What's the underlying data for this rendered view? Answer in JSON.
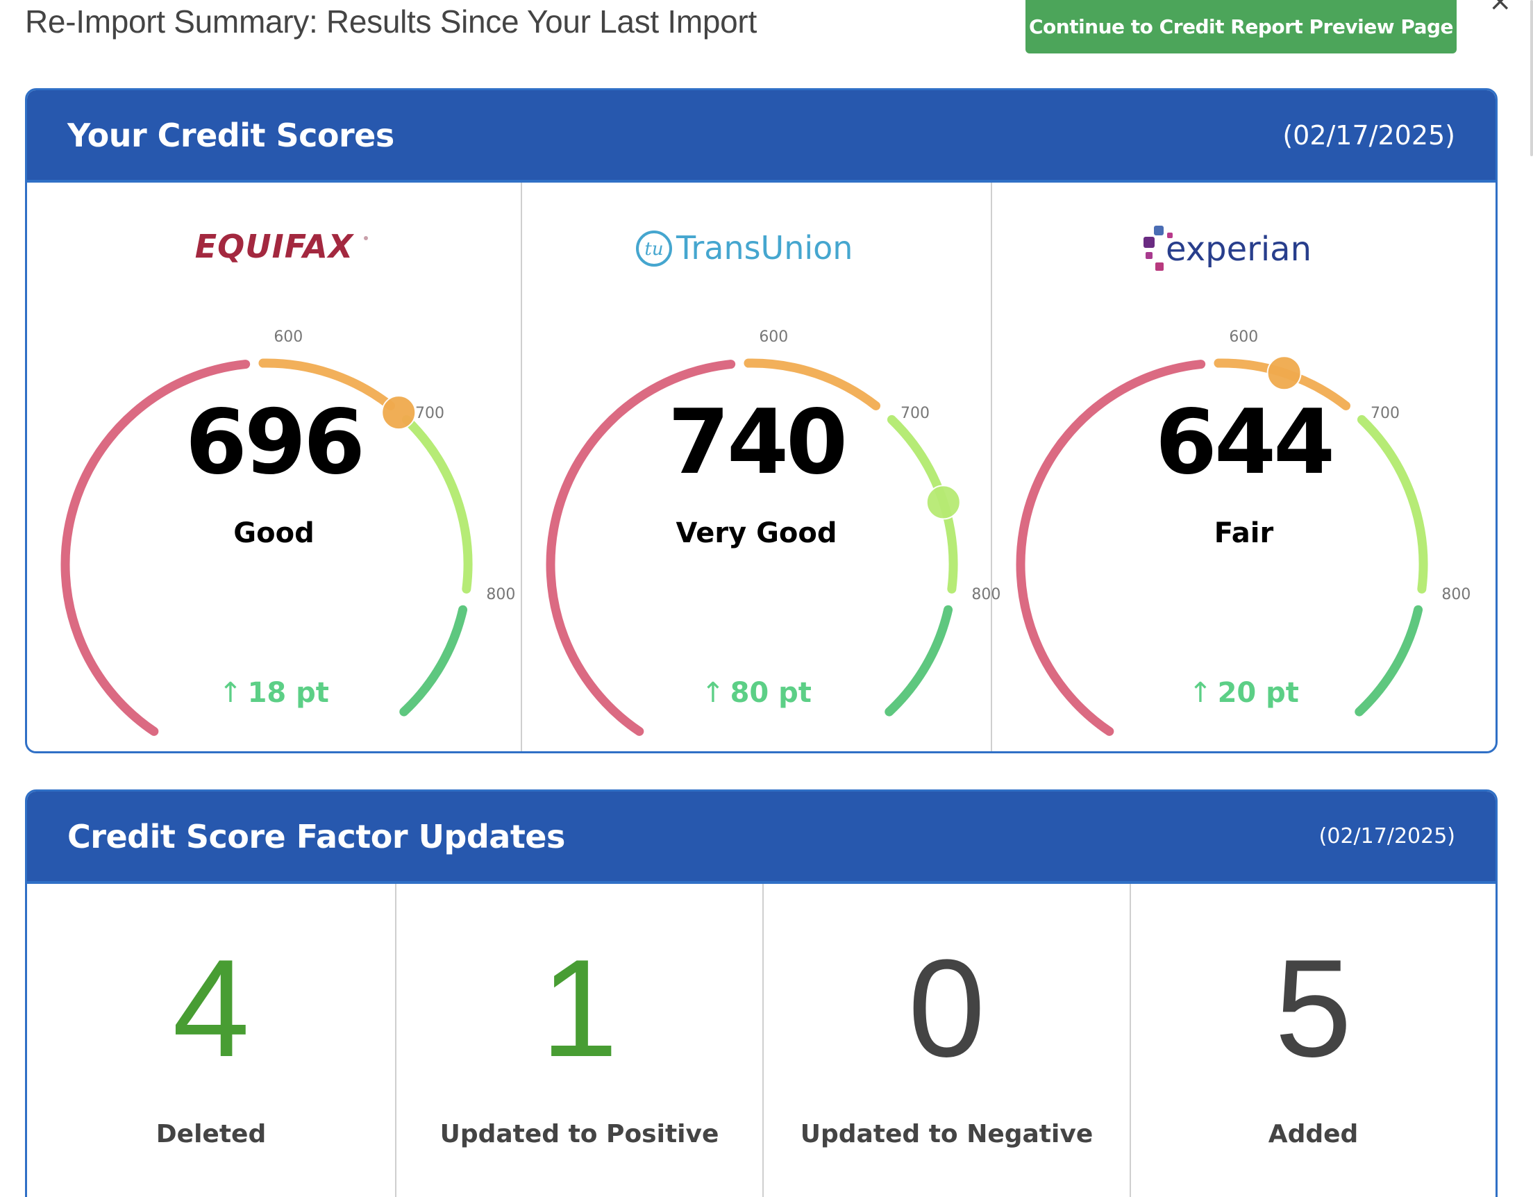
{
  "header": {
    "title": "Re-Import Summary: Results Since Your Last Import",
    "continue_label": "Continue to Credit Report Preview Page",
    "close_icon": "×"
  },
  "scores_card": {
    "title": "Your Credit Scores",
    "date": "(02/17/2025)",
    "ticks": {
      "t600": "600",
      "t700": "700",
      "t800": "800"
    },
    "bureaus": [
      {
        "name": "EQUIFAX",
        "score": "696",
        "rating": "Good",
        "change_arrow": "↑",
        "change": "18 pt",
        "marker_color": "#f0aa4e"
      },
      {
        "name": "TransUnion",
        "logo_mark": "tu",
        "score": "740",
        "rating": "Very Good",
        "change_arrow": "↑",
        "change": "80 pt",
        "marker_color": "#b7ea73"
      },
      {
        "name": "experian",
        "score": "644",
        "rating": "Fair",
        "change_arrow": "↑",
        "change": "20 pt",
        "marker_color": "#f0aa4e"
      }
    ]
  },
  "factors_card": {
    "title": "Credit Score Factor Updates",
    "date": "(02/17/2025)",
    "items": [
      {
        "value": "4",
        "label": "Deleted"
      },
      {
        "value": "1",
        "label": "Updated to Positive"
      },
      {
        "value": "0",
        "label": "Updated to Negative"
      },
      {
        "value": "5",
        "label": "Added"
      }
    ]
  },
  "colors": {
    "header_blue": "#2758ae",
    "border_blue": "#3070c6",
    "button_green": "#4ca55a",
    "change_green": "#5ccf86",
    "factor_green": "#489d33",
    "gauge_poor": "#db6a82",
    "gauge_fair": "#f2b05a",
    "gauge_good": "#b6eb76",
    "gauge_excellent": "#5ec77f"
  }
}
